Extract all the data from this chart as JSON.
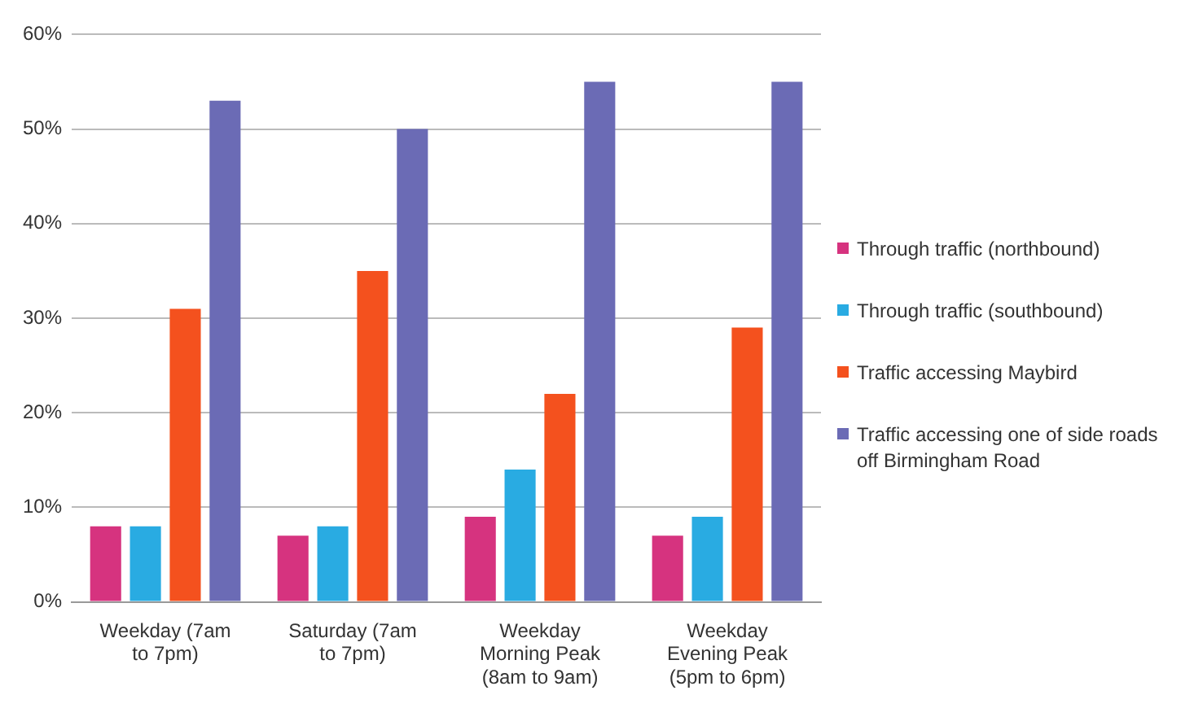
{
  "chart_data": {
    "type": "bar",
    "categories": [
      "Weekday (7am to 7pm)",
      "Saturday (7am to 7pm)",
      "Weekday Morning Peak (8am to 9am)",
      "Weekday Evening Peak (5pm to 6pm)"
    ],
    "series": [
      {
        "name": "Through traffic (northbound)",
        "color": "#d6337f",
        "values": [
          8,
          7,
          9,
          7
        ]
      },
      {
        "name": "Through traffic (southbound)",
        "color": "#29abe2",
        "values": [
          8,
          8,
          14,
          9
        ]
      },
      {
        "name": "Traffic accessing Maybird",
        "color": "#f4511e",
        "values": [
          31,
          35,
          22,
          29
        ]
      },
      {
        "name": "Traffic accessing one of side roads off Birmingham Road",
        "color": "#6b6bb5",
        "values": [
          53,
          50,
          55,
          55
        ]
      }
    ],
    "ylim": [
      0,
      60
    ],
    "yticks": [
      {
        "value": 0,
        "label": "0%"
      },
      {
        "value": 10,
        "label": "10%"
      },
      {
        "value": 20,
        "label": "20%"
      },
      {
        "value": 30,
        "label": "30%"
      },
      {
        "value": 40,
        "label": "40%"
      },
      {
        "value": 50,
        "label": "50%"
      },
      {
        "value": 60,
        "label": "60%"
      }
    ],
    "grid": "y",
    "legend": "right"
  }
}
